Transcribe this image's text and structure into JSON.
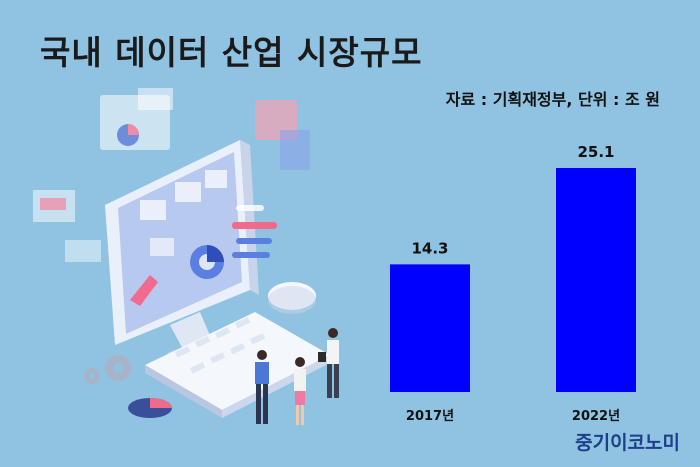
{
  "header": {
    "title": "국내 데이터 산업 시장규모",
    "source": "자료 : 기획재정부, 단위 : 조 원"
  },
  "brand": "중기이코노미",
  "illustration": {
    "icon": "computer-data-analytics-illustration"
  },
  "chart_data": {
    "type": "bar",
    "title": "국내 데이터 산업 시장규모",
    "categories": [
      "2017년",
      "2022년"
    ],
    "series": [
      {
        "values": [
          14.3,
          25.1
        ]
      }
    ],
    "value_labels": [
      "14.3",
      "25.1"
    ],
    "unit": "조 원",
    "ylim": [
      0,
      30
    ],
    "grid": false,
    "bar_color": "#0000ff"
  }
}
